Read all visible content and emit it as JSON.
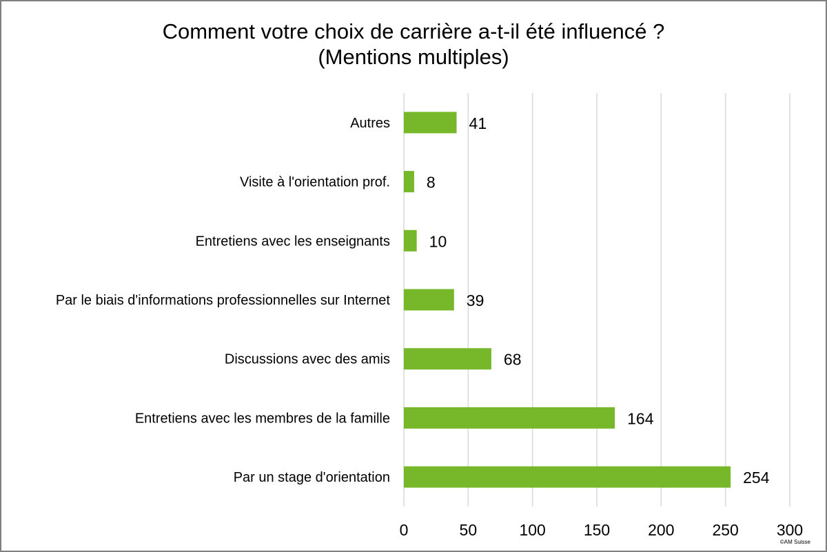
{
  "chart_data": {
    "type": "bar",
    "orientation": "horizontal",
    "title": [
      "Comment votre choix de carrière a-t-il été influencé ?",
      "(Mentions multiples)"
    ],
    "categories": [
      "Autres",
      "Visite à l'orientation prof.",
      "Entretiens avec les enseignants",
      "Par le biais d'informations professionnelles sur Internet",
      "Discussions avec des amis",
      "Entretiens avec les membres de la famille",
      "Par un stage d'orientation"
    ],
    "values": [
      41,
      8,
      10,
      39,
      68,
      164,
      254
    ],
    "data_labels": [
      "41",
      "8",
      "10",
      "39",
      "68",
      "164",
      "254"
    ],
    "xlim": [
      0,
      300
    ],
    "x_ticks": [
      0,
      50,
      100,
      150,
      200,
      250,
      300
    ],
    "x_tick_labels": [
      "0",
      "50",
      "100",
      "150",
      "200",
      "250",
      "300"
    ],
    "grid": "vertical",
    "legend": "none",
    "colors": {
      "bar": "#76b82a",
      "grid": "#d9d9d9",
      "frame": "#7f7f7f"
    }
  },
  "credit": "©AM Suisse"
}
